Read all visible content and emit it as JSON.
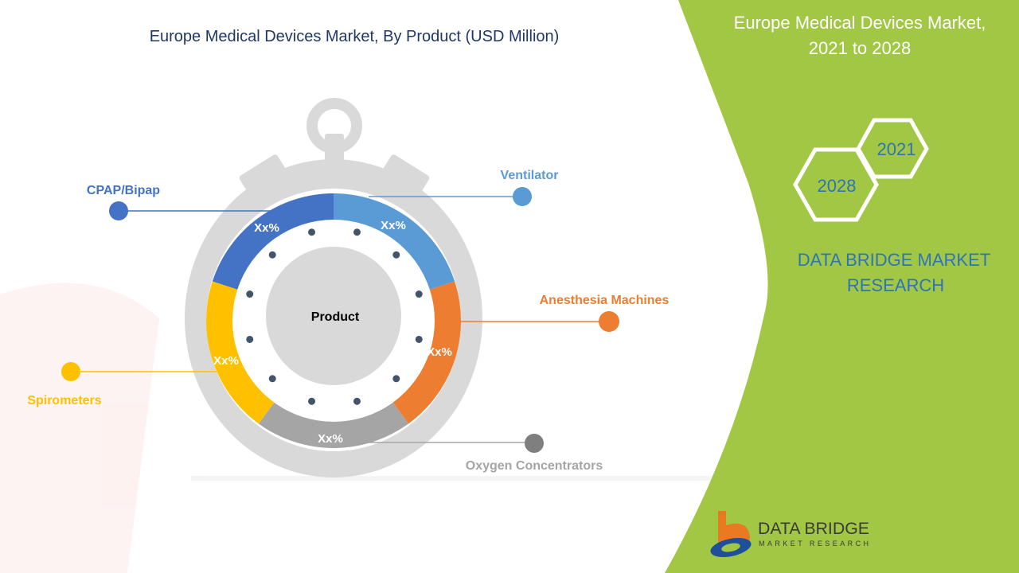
{
  "chart_data": {
    "type": "pie",
    "title": "Europe Medical Devices Market, By Product (USD Million)",
    "center_label": "Product",
    "slices": [
      {
        "name": "Ventilator",
        "label": "Xx%",
        "share": 0.2,
        "color": "#5B9BD5"
      },
      {
        "name": "Anesthesia Machines",
        "label": "Xx%",
        "share": 0.2,
        "color": "#ED7D31"
      },
      {
        "name": "Oxygen Concentrators",
        "label": "Xx%",
        "share": 0.2,
        "color": "#A5A5A5"
      },
      {
        "name": "Spirometers",
        "label": "Xx%",
        "share": 0.2,
        "color": "#FFC000"
      },
      {
        "name": "CPAP/Bipap",
        "label": "Xx%",
        "share": 0.2,
        "color": "#4472C4"
      }
    ]
  },
  "side_panel": {
    "title_line1": "Europe Medical Devices Market,",
    "title_line2": "2021 to 2028",
    "year_start": "2021",
    "year_end": "2028",
    "company_line1": "DATA BRIDGE MARKET",
    "company_line2": "RESEARCH",
    "accent_color": "#A1C745"
  },
  "logo": {
    "line1": "DATA BRIDGE",
    "line2": "MARKET RESEARCH"
  }
}
